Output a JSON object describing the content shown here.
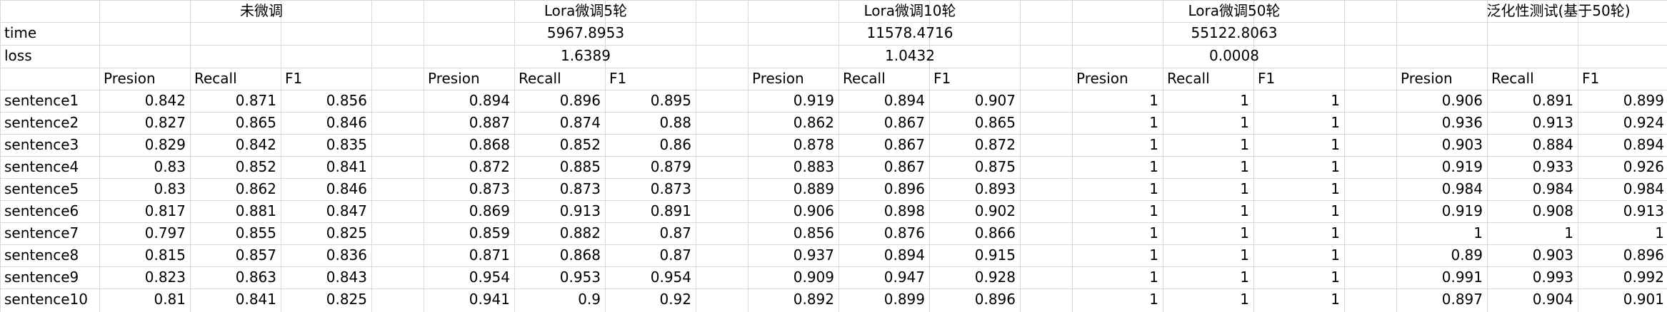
{
  "groups": [
    {
      "title": "未微调",
      "time": "",
      "loss": "",
      "rows": [
        [
          "0.842",
          "0.871",
          "0.856"
        ],
        [
          "0.827",
          "0.865",
          "0.846"
        ],
        [
          "0.829",
          "0.842",
          "0.835"
        ],
        [
          "0.83",
          "0.852",
          "0.841"
        ],
        [
          "0.83",
          "0.862",
          "0.846"
        ],
        [
          "0.817",
          "0.881",
          "0.847"
        ],
        [
          "0.797",
          "0.855",
          "0.825"
        ],
        [
          "0.815",
          "0.857",
          "0.836"
        ],
        [
          "0.823",
          "0.863",
          "0.843"
        ],
        [
          "0.81",
          "0.841",
          "0.825"
        ]
      ]
    },
    {
      "title": "Lora微调5轮",
      "time": "5967.8953",
      "loss": "1.6389",
      "rows": [
        [
          "0.894",
          "0.896",
          "0.895"
        ],
        [
          "0.887",
          "0.874",
          "0.88"
        ],
        [
          "0.868",
          "0.852",
          "0.86"
        ],
        [
          "0.872",
          "0.885",
          "0.879"
        ],
        [
          "0.873",
          "0.873",
          "0.873"
        ],
        [
          "0.869",
          "0.913",
          "0.891"
        ],
        [
          "0.859",
          "0.882",
          "0.87"
        ],
        [
          "0.871",
          "0.868",
          "0.87"
        ],
        [
          "0.954",
          "0.953",
          "0.954"
        ],
        [
          "0.941",
          "0.9",
          "0.92"
        ]
      ]
    },
    {
      "title": "Lora微调10轮",
      "time": "11578.4716",
      "loss": "1.0432",
      "rows": [
        [
          "0.919",
          "0.894",
          "0.907"
        ],
        [
          "0.862",
          "0.867",
          "0.865"
        ],
        [
          "0.878",
          "0.867",
          "0.872"
        ],
        [
          "0.883",
          "0.867",
          "0.875"
        ],
        [
          "0.889",
          "0.896",
          "0.893"
        ],
        [
          "0.906",
          "0.898",
          "0.902"
        ],
        [
          "0.856",
          "0.876",
          "0.866"
        ],
        [
          "0.937",
          "0.894",
          "0.915"
        ],
        [
          "0.909",
          "0.947",
          "0.928"
        ],
        [
          "0.892",
          "0.899",
          "0.896"
        ]
      ]
    },
    {
      "title": "Lora微调50轮",
      "time": "55122.8063",
      "loss": "0.0008",
      "rows": [
        [
          "1",
          "1",
          "1"
        ],
        [
          "1",
          "1",
          "1"
        ],
        [
          "1",
          "1",
          "1"
        ],
        [
          "1",
          "1",
          "1"
        ],
        [
          "1",
          "1",
          "1"
        ],
        [
          "1",
          "1",
          "1"
        ],
        [
          "1",
          "1",
          "1"
        ],
        [
          "1",
          "1",
          "1"
        ],
        [
          "1",
          "1",
          "1"
        ],
        [
          "1",
          "1",
          "1"
        ]
      ]
    },
    {
      "title": "泛化性测试(基于50轮)",
      "time": "",
      "loss": "",
      "rows": [
        [
          "0.906",
          "0.891",
          "0.899"
        ],
        [
          "0.936",
          "0.913",
          "0.924"
        ],
        [
          "0.903",
          "0.884",
          "0.894"
        ],
        [
          "0.919",
          "0.933",
          "0.926"
        ],
        [
          "0.984",
          "0.984",
          "0.984"
        ],
        [
          "0.919",
          "0.908",
          "0.913"
        ],
        [
          "1",
          "1",
          "1"
        ],
        [
          "0.89",
          "0.903",
          "0.896"
        ],
        [
          "0.991",
          "0.993",
          "0.992"
        ],
        [
          "0.897",
          "0.904",
          "0.901"
        ]
      ]
    }
  ],
  "row_labels": {
    "time": "time",
    "loss": "loss"
  },
  "metric_headers": [
    "Presion",
    "Recall",
    "F1"
  ],
  "sentence_labels": [
    "sentence1",
    "sentence2",
    "sentence3",
    "sentence4",
    "sentence5",
    "sentence6",
    "sentence7",
    "sentence8",
    "sentence9",
    "sentence10"
  ]
}
